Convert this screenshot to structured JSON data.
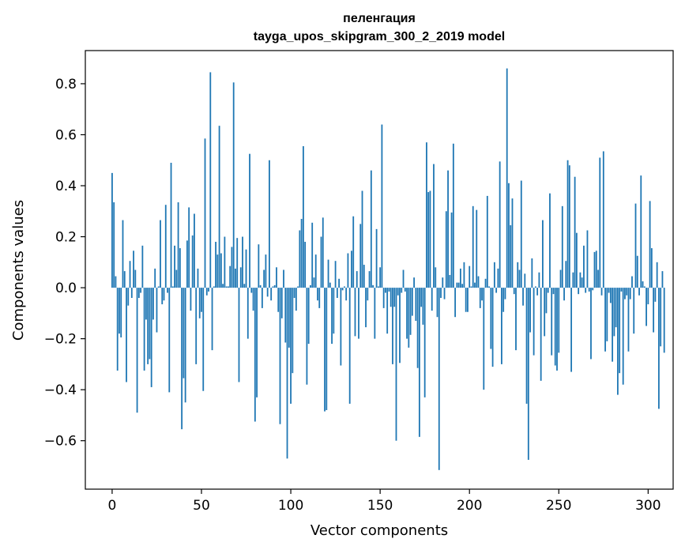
{
  "chart_data": {
    "type": "bar",
    "title": "пеленгация",
    "subtitle": "tayga_upos_skipgram_300_2_2019 model",
    "xlabel": "Vector components",
    "ylabel": "Components values",
    "xlim": [
      -15,
      314
    ],
    "ylim": [
      -0.79,
      0.93
    ],
    "x_ticks": [
      0,
      50,
      100,
      150,
      200,
      250,
      300
    ],
    "x_tick_labels": [
      "0",
      "50",
      "100",
      "150",
      "200",
      "250",
      "300"
    ],
    "y_ticks": [
      -0.6,
      -0.4,
      -0.2,
      0.0,
      0.2,
      0.4,
      0.6,
      0.8
    ],
    "y_tick_labels": [
      "−0.6",
      "−0.4",
      "−0.2",
      "0.0",
      "0.2",
      "0.4",
      "0.6",
      "0.8"
    ],
    "bar_color": "#1f77b4",
    "grid": false,
    "series": [
      {
        "name": "пеленгация",
        "x_start": 0,
        "values": [
          0.45,
          0.335,
          0.045,
          -0.325,
          -0.18,
          -0.195,
          0.265,
          0.065,
          -0.37,
          -0.07,
          0.105,
          -0.04,
          0.145,
          0.07,
          -0.49,
          -0.04,
          -0.02,
          0.165,
          -0.325,
          -0.125,
          -0.3,
          -0.28,
          -0.39,
          -0.125,
          0.075,
          -0.175,
          0.005,
          0.265,
          -0.065,
          -0.05,
          0.325,
          -0.02,
          -0.41,
          0.49,
          0.005,
          0.165,
          0.07,
          0.335,
          0.155,
          -0.555,
          -0.355,
          -0.45,
          0.185,
          0.315,
          -0.09,
          0.205,
          0.29,
          -0.3,
          0.075,
          -0.12,
          -0.095,
          -0.405,
          0.585,
          -0.03,
          -0.015,
          0.845,
          -0.245,
          0.005,
          0.18,
          0.13,
          0.635,
          0.135,
          0.015,
          0.2,
          0.005,
          0.005,
          0.085,
          0.16,
          0.805,
          0.075,
          0.195,
          -0.37,
          0.08,
          0.2,
          0.015,
          0.15,
          -0.2,
          0.525,
          -0.02,
          -0.09,
          -0.525,
          -0.43,
          0.17,
          0.01,
          -0.08,
          0.07,
          0.13,
          -0.035,
          0.5,
          -0.05,
          0.005,
          0.01,
          0.08,
          -0.095,
          -0.535,
          -0.12,
          0.07,
          -0.215,
          -0.67,
          -0.235,
          -0.455,
          -0.335,
          -0.04,
          -0.09,
          0.005,
          0.225,
          0.27,
          0.555,
          0.18,
          -0.38,
          -0.22,
          0.01,
          0.255,
          0.04,
          0.13,
          -0.05,
          -0.08,
          0.2,
          0.275,
          -0.485,
          -0.48,
          0.11,
          0.02,
          -0.22,
          -0.18,
          0.105,
          -0.04,
          0.035,
          -0.305,
          -0.01,
          0.005,
          -0.05,
          0.135,
          -0.455,
          0.145,
          0.28,
          -0.19,
          0.065,
          -0.2,
          0.25,
          0.38,
          0.09,
          -0.155,
          -0.05,
          0.065,
          0.46,
          0.01,
          -0.2,
          0.23,
          0.005,
          0.08,
          0.64,
          -0.08,
          -0.02,
          -0.18,
          -0.015,
          -0.075,
          -0.3,
          -0.075,
          -0.6,
          -0.03,
          -0.295,
          -0.02,
          0.07,
          -0.015,
          -0.2,
          -0.235,
          -0.185,
          -0.11,
          0.04,
          -0.13,
          -0.315,
          -0.585,
          -0.075,
          -0.145,
          -0.43,
          0.57,
          0.375,
          0.38,
          -0.09,
          0.485,
          0.08,
          -0.115,
          -0.715,
          -0.04,
          0.04,
          -0.045,
          0.3,
          0.46,
          0.05,
          0.295,
          0.565,
          -0.115,
          0.02,
          0.02,
          0.075,
          0.015,
          0.1,
          -0.095,
          -0.095,
          0.085,
          0.005,
          0.32,
          0.02,
          0.305,
          0.045,
          -0.08,
          -0.05,
          -0.4,
          0.035,
          0.36,
          0.005,
          -0.24,
          -0.31,
          0.1,
          -0.02,
          0.075,
          0.495,
          -0.3,
          -0.095,
          -0.045,
          0.86,
          0.41,
          0.245,
          0.35,
          -0.025,
          -0.245,
          0.1,
          0.07,
          0.42,
          -0.07,
          0.055,
          -0.455,
          -0.675,
          -0.175,
          0.115,
          -0.265,
          0.005,
          -0.03,
          0.06,
          -0.365,
          0.265,
          -0.19,
          -0.1,
          -0.02,
          0.37,
          -0.265,
          -0.025,
          -0.305,
          -0.325,
          -0.255,
          0.07,
          0.32,
          -0.05,
          0.105,
          0.5,
          0.48,
          -0.33,
          0.06,
          0.435,
          0.215,
          -0.025,
          0.06,
          0.04,
          0.165,
          -0.02,
          0.225,
          -0.015,
          -0.28,
          -0.01,
          0.14,
          0.145,
          0.07,
          0.51,
          -0.03,
          0.535,
          -0.25,
          -0.21,
          -0.02,
          -0.06,
          -0.29,
          -0.19,
          -0.155,
          -0.42,
          -0.335,
          -0.015,
          -0.38,
          -0.045,
          -0.03,
          -0.25,
          -0.045,
          0.045,
          -0.18,
          0.33,
          0.125,
          -0.03,
          0.44,
          0.025,
          0.005,
          -0.15,
          -0.065,
          0.34,
          0.155,
          -0.175,
          -0.055,
          0.1,
          -0.475,
          -0.23,
          0.065,
          -0.255
        ]
      }
    ]
  }
}
